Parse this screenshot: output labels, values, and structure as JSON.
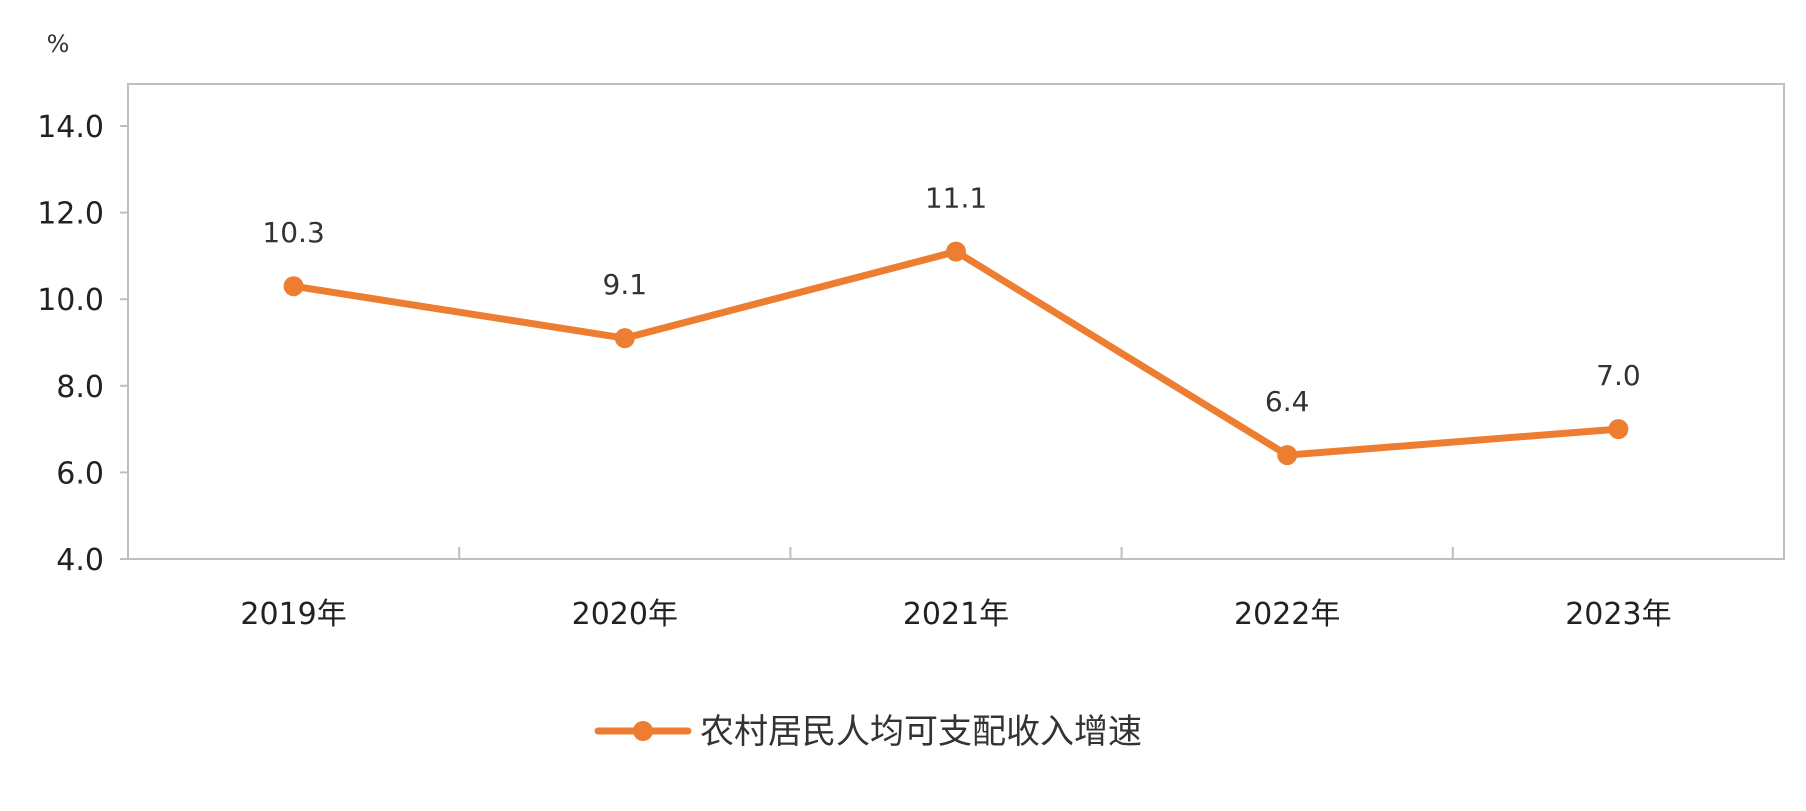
{
  "chart_data": {
    "type": "line",
    "unit": "%",
    "categories": [
      "2019年",
      "2020年",
      "2021年",
      "2022年",
      "2023年"
    ],
    "series": [
      {
        "name": "农村居民人均可支配收入增速",
        "values": [
          10.3,
          9.1,
          11.1,
          6.4,
          7.0
        ],
        "data_labels": [
          "10.3",
          "9.1",
          "11.1",
          "6.4",
          "7.0"
        ],
        "color": "#ED7D31"
      }
    ],
    "ylim": [
      4.0,
      14.0
    ],
    "yticks": [
      "4.0",
      "6.0",
      "8.0",
      "10.0",
      "12.0",
      "14.0"
    ],
    "grid": false,
    "legend_position": "bottom"
  }
}
